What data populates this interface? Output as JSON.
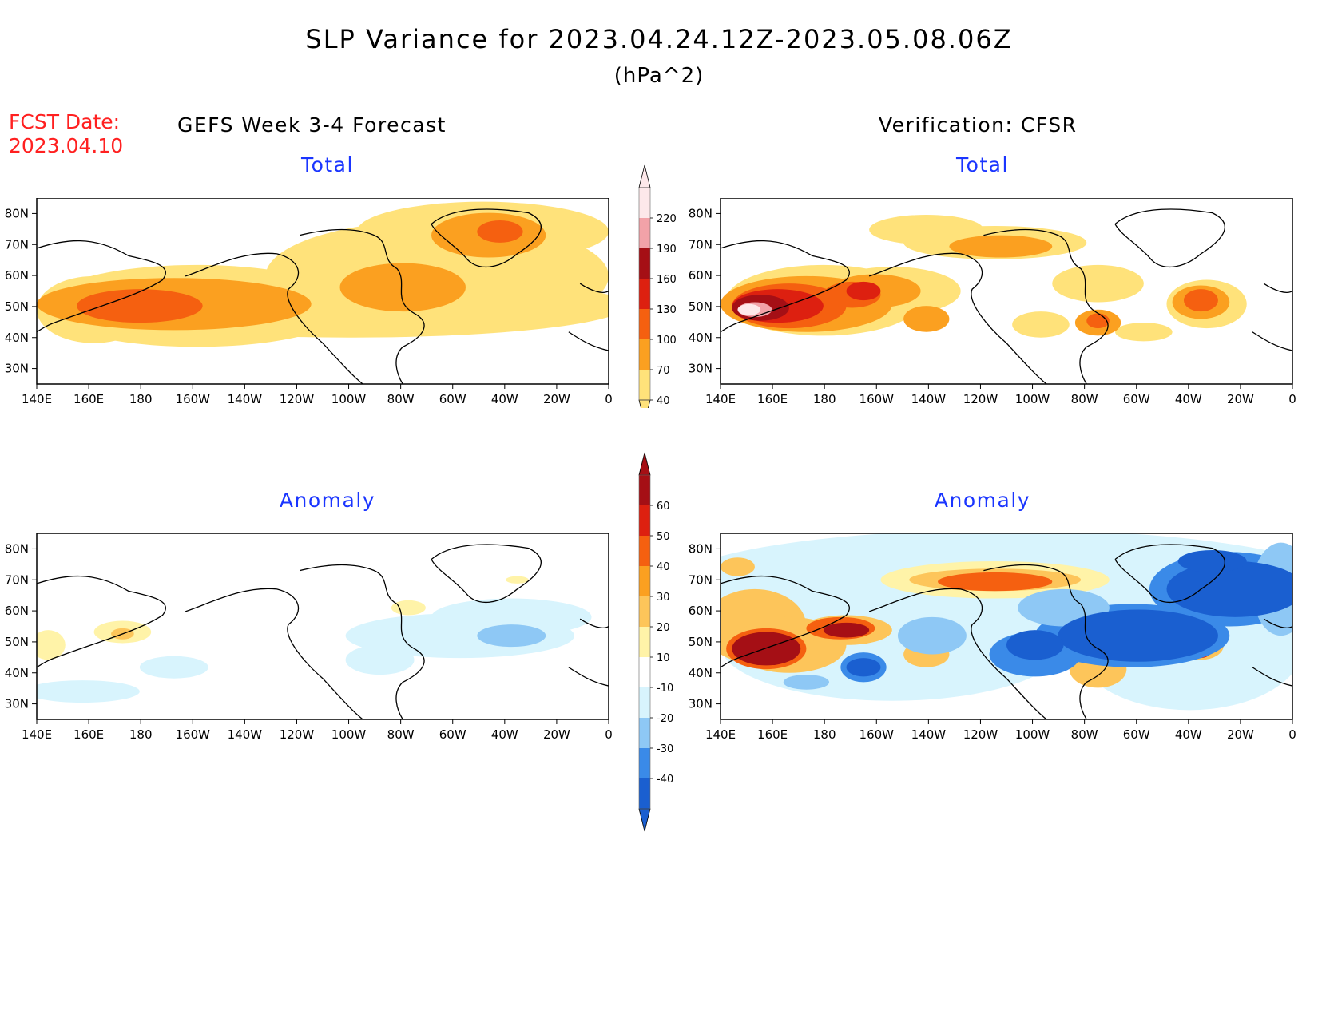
{
  "header": {
    "title": "SLP Variance for 2023.04.24.12Z-2023.05.08.06Z",
    "units": "(hPa^2)",
    "fcst_label": "FCST Date:",
    "fcst_date": "2023.04.10"
  },
  "columns": {
    "left": "GEFS Week 3-4 Forecast",
    "right": "Verification: CFSR"
  },
  "panels": {
    "total_label": "Total",
    "anomaly_label": "Anomaly"
  },
  "axes": {
    "lon_ticks": [
      "140E",
      "160E",
      "180",
      "160W",
      "140W",
      "120W",
      "100W",
      "80W",
      "60W",
      "40W",
      "20W",
      "0"
    ],
    "lat_ticks": [
      "80N",
      "70N",
      "60N",
      "50N",
      "40N",
      "30N"
    ]
  },
  "colorbar_total": {
    "levels": [
      "220",
      "190",
      "160",
      "130",
      "100",
      "70",
      "40"
    ],
    "colors": [
      "#fde8ea",
      "#f2a2a8",
      "#a50f15",
      "#dd2010",
      "#f56010",
      "#fba020",
      "#ffe27a"
    ]
  },
  "colorbar_anomaly": {
    "levels": [
      "60",
      "50",
      "40",
      "30",
      "20",
      "10",
      "-10",
      "-20",
      "-30",
      "-40"
    ],
    "colors": [
      "#a50f15",
      "#dd2010",
      "#f56010",
      "#fba020",
      "#fdc55a",
      "#fff3a8",
      "#ffffff",
      "#d8f4fd",
      "#8ec8f5",
      "#3a8ae8",
      "#1a5fd0"
    ]
  },
  "chart_data": [
    {
      "type": "map",
      "panel": "GEFS Week 3-4 Forecast - Total",
      "title": "Total",
      "units": "hPa^2",
      "lon_range": [
        "140E",
        "0"
      ],
      "lat_range": [
        "25N",
        "85N"
      ]
    },
    {
      "type": "map",
      "panel": "Verification: CFSR - Total",
      "title": "Total",
      "units": "hPa^2",
      "lon_range": [
        "140E",
        "0"
      ],
      "lat_range": [
        "25N",
        "85N"
      ]
    },
    {
      "type": "map",
      "panel": "GEFS Week 3-4 Forecast - Anomaly",
      "title": "Anomaly",
      "units": "hPa^2",
      "lon_range": [
        "140E",
        "0"
      ],
      "lat_range": [
        "25N",
        "85N"
      ]
    },
    {
      "type": "map",
      "panel": "Verification: CFSR - Anomaly",
      "title": "Anomaly",
      "units": "hPa^2",
      "lon_range": [
        "140E",
        "0"
      ],
      "lat_range": [
        "25N",
        "85N"
      ]
    }
  ]
}
